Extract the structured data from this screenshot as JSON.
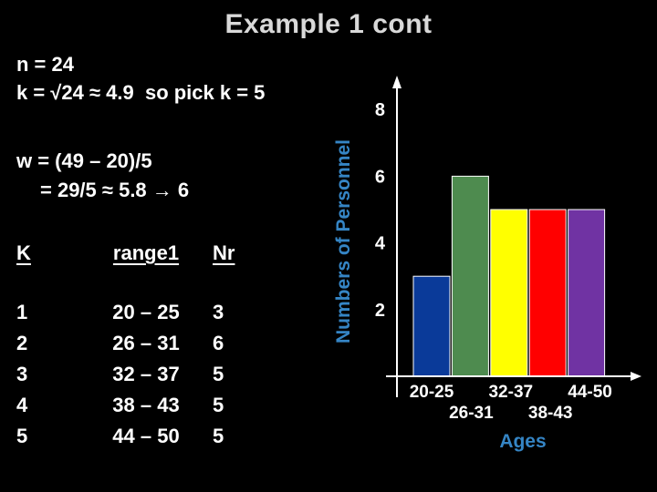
{
  "slide": {
    "title": "Example 1 cont",
    "lines": [
      "n = 24",
      "k = √24 ≈ 4.9  so pick k = 5",
      "w = (49 – 20)/5",
      "= 29/5 ≈ 5.8 → 6"
    ],
    "table": {
      "headers": [
        "K",
        "range1",
        "Nr"
      ],
      "rows": [
        [
          "1",
          "20 – 25",
          "3"
        ],
        [
          "2",
          "26 – 31",
          "6"
        ],
        [
          "3",
          "32 – 37",
          "5"
        ],
        [
          "4",
          "38 – 43",
          "5"
        ],
        [
          "5",
          "44 – 50",
          "5"
        ]
      ]
    }
  },
  "chart_data": {
    "type": "bar",
    "title": "",
    "categories": [
      "20-25",
      "26-31",
      "32-37",
      "38-43",
      "44-50"
    ],
    "values": [
      3,
      6,
      5,
      5,
      5
    ],
    "xlabel": "Ages",
    "ylabel": "Numbers of Personnel",
    "yticks": [
      2,
      4,
      6,
      8
    ],
    "ylim": [
      0,
      9
    ],
    "grid": false,
    "legend": false,
    "bar_colors": [
      "#0a3a99",
      "#4e8b4f",
      "#ffff00",
      "#ff0000",
      "#7033a3"
    ],
    "bar_outline_color": "#ffffff",
    "axis_color": "#ffffff",
    "tick_label_color": "#ffffff",
    "axis_title_color": "#3585c5"
  },
  "colors": {
    "background": "#000000",
    "title_text": "#d9d9d9",
    "body_text": "#ffffff"
  }
}
